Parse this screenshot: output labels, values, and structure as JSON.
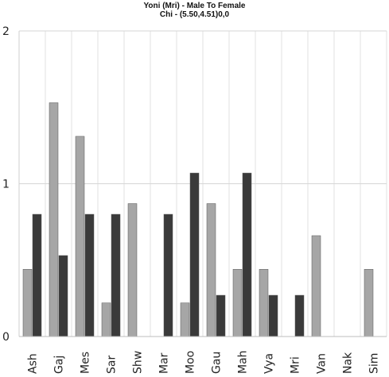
{
  "chart_data": {
    "type": "bar",
    "title": "Yoni (Mri) - Male To Female",
    "subtitle": "Chi - (5.50,4.51)0,0",
    "xlabel": "",
    "ylabel": "",
    "categories": [
      "Ash",
      "Gaj",
      "Mes",
      "Sar",
      "Shw",
      "Mar",
      "Moo",
      "Gau",
      "Mah",
      "Vya",
      "Mri",
      "Van",
      "Nak",
      "Sim"
    ],
    "series": [
      {
        "values": [
          0.44,
          1.53,
          1.31,
          0.22,
          0.87,
          0.0,
          0.22,
          0.87,
          0.44,
          0.44,
          0.0,
          0.66,
          0.0,
          0.44
        ]
      },
      {
        "values": [
          0.8,
          0.53,
          0.8,
          0.8,
          0.0,
          0.8,
          1.07,
          0.27,
          1.07,
          0.27,
          0.27,
          0.0,
          0.0,
          0.0
        ]
      }
    ],
    "ylim": [
      0,
      2
    ],
    "yticks": [
      "0",
      "1",
      "2"
    ],
    "grid": true,
    "colors": [
      "#a6a6a6",
      "#3a3a3a"
    ]
  }
}
